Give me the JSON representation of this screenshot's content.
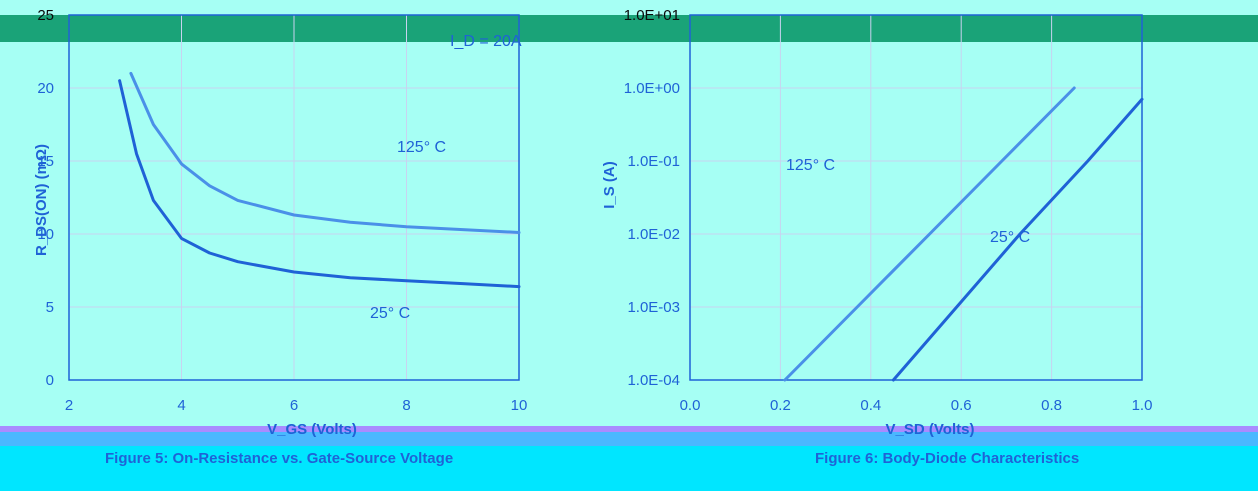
{
  "colors": {
    "background": "#a6fff4",
    "header_band": "#1aa378",
    "curve": "#1f62d6",
    "curve_light": "#4a90e8",
    "curve_dark": "#0c5a3a",
    "grid": "#c8d3f0",
    "caption_band_1": "#a98bff",
    "caption_band_2": "#1fb0ff",
    "caption_band_3": "#00e6ff"
  },
  "chart_data": [
    {
      "type": "line",
      "title": "Figure 5: On-Resistance vs. Gate-Source Voltage",
      "xlabel": "V_GS (Volts)",
      "ylabel": "R_DS(ON) (mΩ)",
      "xlim": [
        2,
        10
      ],
      "ylim": [
        0,
        25
      ],
      "x_ticks": [
        "2",
        "4",
        "6",
        "8",
        "10"
      ],
      "y_ticks": [
        "0",
        "5",
        "10",
        "15",
        "20",
        "25"
      ],
      "grid": true,
      "annotations": [
        "I_D = 20A",
        "125° C",
        "25° C"
      ],
      "series": [
        {
          "name": "125° C",
          "x": [
            3.1,
            3.5,
            4.0,
            4.5,
            5.0,
            6.0,
            7.0,
            8.0,
            9.0,
            10.0
          ],
          "y": [
            21,
            17.5,
            14.8,
            13.3,
            12.3,
            11.3,
            10.8,
            10.5,
            10.3,
            10.1
          ]
        },
        {
          "name": "25° C",
          "x": [
            2.9,
            3.2,
            3.5,
            4.0,
            4.5,
            5.0,
            6.0,
            7.0,
            8.0,
            9.0,
            10.0
          ],
          "y": [
            20.5,
            15.5,
            12.3,
            9.7,
            8.7,
            8.1,
            7.4,
            7.0,
            6.8,
            6.6,
            6.4
          ]
        }
      ]
    },
    {
      "type": "line",
      "title": "Figure 6: Body-Diode Characteristics",
      "xlabel": "V_SD (Volts)",
      "ylabel": "I_S (A)",
      "yscale": "log",
      "xlim": [
        0.0,
        1.0
      ],
      "ylim": [
        0.0001,
        10
      ],
      "x_ticks": [
        "0.0",
        "0.2",
        "0.4",
        "0.6",
        "0.8",
        "1.0"
      ],
      "y_ticks": [
        "1.0E-04",
        "1.0E-03",
        "1.0E-02",
        "1.0E-01",
        "1.0E+00",
        "1.0E+01"
      ],
      "grid": true,
      "annotations": [
        "125° C",
        "25° C"
      ],
      "series": [
        {
          "name": "125° C",
          "x": [
            0.21,
            0.37,
            0.53,
            0.69,
            0.85
          ],
          "y": [
            0.0001,
            0.001,
            0.01,
            0.1,
            1.0
          ]
        },
        {
          "name": "25° C",
          "x": [
            0.45,
            0.59,
            0.73,
            0.88,
            1.0
          ],
          "y": [
            0.0001,
            0.001,
            0.01,
            0.1,
            0.7
          ]
        }
      ]
    }
  ]
}
